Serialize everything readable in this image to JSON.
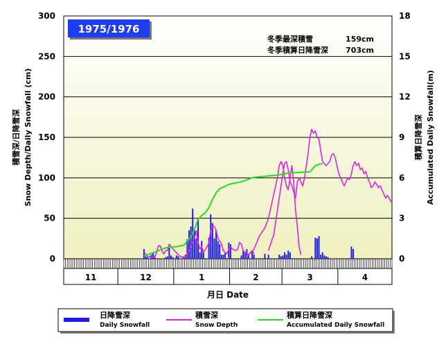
{
  "chart_data": {
    "type": "bar+line",
    "title": "1975/1976",
    "summary": [
      {
        "label": "冬季最深積雪",
        "value": "159cm"
      },
      {
        "label": "冬季積算日降雪深",
        "value": "703cm"
      }
    ],
    "ylabel_left": [
      "積雪深/日降雪深",
      "Snow Depth/Daily Snowfall (cm)"
    ],
    "ylabel_right": [
      "積算日降雪深",
      "Accumulated Daily Snowfall(m)"
    ],
    "xlabel": "月日 Date",
    "ylim_left": [
      0,
      300
    ],
    "ylim_right": [
      0,
      18
    ],
    "left_ticks": [
      0,
      50,
      100,
      150,
      200,
      250,
      300
    ],
    "right_ticks": [
      0,
      3,
      6,
      9,
      12,
      15,
      18
    ],
    "months": [
      "11",
      "12",
      "1",
      "2",
      "3",
      "4"
    ],
    "start_date": "11/1",
    "num_days": 182,
    "grid": true,
    "series": [
      {
        "name": "日降雪深",
        "name_en": "Daily Snowfall",
        "kind": "bar",
        "axis": "left",
        "color": "#1c1cf0",
        "values": [
          [
            44,
            12
          ],
          [
            45,
            3
          ],
          [
            46,
            2
          ],
          [
            48,
            5
          ],
          [
            49,
            7
          ],
          [
            50,
            4
          ],
          [
            56,
            2
          ],
          [
            57,
            3
          ],
          [
            58,
            15
          ],
          [
            59,
            4
          ],
          [
            60,
            2
          ],
          [
            62,
            4
          ],
          [
            63,
            3
          ],
          [
            66,
            3
          ],
          [
            67,
            5
          ],
          [
            68,
            24
          ],
          [
            69,
            35
          ],
          [
            70,
            40
          ],
          [
            71,
            62
          ],
          [
            72,
            35
          ],
          [
            73,
            25
          ],
          [
            74,
            50
          ],
          [
            75,
            8
          ],
          [
            76,
            22
          ],
          [
            77,
            8
          ],
          [
            80,
            26
          ],
          [
            81,
            55
          ],
          [
            82,
            44
          ],
          [
            83,
            25
          ],
          [
            84,
            35
          ],
          [
            85,
            22
          ],
          [
            86,
            18
          ],
          [
            87,
            5
          ],
          [
            88,
            5
          ],
          [
            89,
            7
          ],
          [
            91,
            20
          ],
          [
            92,
            18
          ],
          [
            98,
            4
          ],
          [
            99,
            10
          ],
          [
            100,
            8
          ],
          [
            101,
            12
          ],
          [
            102,
            6
          ],
          [
            104,
            10
          ],
          [
            105,
            5
          ],
          [
            111,
            6
          ],
          [
            113,
            5
          ],
          [
            119,
            5
          ],
          [
            120,
            3
          ],
          [
            121,
            4
          ],
          [
            122,
            8
          ],
          [
            123,
            5
          ],
          [
            124,
            10
          ],
          [
            125,
            8
          ],
          [
            137,
            3
          ],
          [
            139,
            26
          ],
          [
            140,
            25
          ],
          [
            141,
            28
          ],
          [
            142,
            5
          ],
          [
            143,
            8
          ],
          [
            144,
            4
          ],
          [
            145,
            3
          ],
          [
            146,
            2
          ],
          [
            159,
            15
          ],
          [
            160,
            12
          ]
        ]
      },
      {
        "name": "積雪深",
        "name_en": "Snow Depth",
        "kind": "line",
        "axis": "left",
        "color": "#e020e0",
        "segments": [
          [
            [
              44,
              8
            ],
            [
              46,
              3
            ],
            [
              48,
              2
            ],
            [
              50,
              2
            ],
            [
              51,
              8
            ],
            [
              52,
              16
            ],
            [
              53,
              16
            ],
            [
              54,
              10
            ],
            [
              55,
              6
            ],
            [
              56,
              10
            ],
            [
              57,
              10
            ],
            [
              58,
              18
            ],
            [
              59,
              15
            ],
            [
              61,
              10
            ],
            [
              63,
              5
            ],
            [
              64,
              3
            ],
            [
              65,
              2
            ],
            [
              67,
              2
            ],
            [
              69,
              10
            ],
            [
              70,
              15
            ],
            [
              72,
              25
            ],
            [
              73,
              35
            ],
            [
              74,
              20
            ],
            [
              75,
              12
            ],
            [
              76,
              15
            ],
            [
              77,
              8
            ],
            [
              79,
              15
            ],
            [
              80,
              20
            ],
            [
              81,
              35
            ],
            [
              82,
              40
            ],
            [
              83,
              40
            ],
            [
              84,
              35
            ],
            [
              85,
              25
            ],
            [
              86,
              22
            ],
            [
              87,
              18
            ],
            [
              88,
              10
            ],
            [
              89,
              8
            ],
            [
              90,
              6
            ],
            [
              91,
              12
            ],
            [
              92,
              15
            ],
            [
              93,
              12
            ],
            [
              95,
              10
            ],
            [
              96,
              12
            ],
            [
              97,
              20
            ],
            [
              98,
              18
            ],
            [
              99,
              10
            ],
            [
              100,
              8
            ],
            [
              101,
              3
            ],
            [
              102,
              4
            ],
            [
              103,
              8
            ],
            [
              104,
              10
            ],
            [
              105,
              6
            ]
          ],
          [
            [
              102,
              5
            ],
            [
              105,
              12
            ],
            [
              108,
              28
            ],
            [
              111,
              38
            ],
            [
              113,
              50
            ],
            [
              114,
              60
            ],
            [
              116,
              80
            ],
            [
              118,
              100
            ],
            [
              119,
              115
            ],
            [
              120,
              120
            ],
            [
              121,
              115
            ],
            [
              122,
              100
            ],
            [
              123,
              90
            ],
            [
              124,
              85
            ],
            [
              125,
              100
            ],
            [
              126,
              115
            ],
            [
              127,
              95
            ],
            [
              128,
              60
            ],
            [
              129,
              40
            ],
            [
              130,
              15
            ],
            [
              131,
              5
            ]
          ],
          [
            [
              113,
              10
            ],
            [
              116,
              30
            ],
            [
              118,
              60
            ],
            [
              120,
              90
            ],
            [
              121,
              105
            ],
            [
              122,
              118
            ],
            [
              123,
              120
            ],
            [
              124,
              110
            ],
            [
              125,
              95
            ],
            [
              126,
              90
            ],
            [
              128,
              75
            ],
            [
              129,
              95
            ],
            [
              130,
              100
            ],
            [
              131,
              95
            ],
            [
              132,
              90
            ],
            [
              133,
              100
            ],
            [
              134,
              115
            ],
            [
              135,
              130
            ],
            [
              136,
              150
            ],
            [
              137,
              160
            ],
            [
              138,
              155
            ],
            [
              139,
              158
            ],
            [
              140,
              150
            ],
            [
              141,
              148
            ],
            [
              143,
              120
            ],
            [
              145,
              115
            ],
            [
              147,
              120
            ],
            [
              148,
              128
            ],
            [
              149,
              130
            ],
            [
              150,
              125
            ],
            [
              151,
              115
            ],
            [
              152,
              105
            ],
            [
              153,
              100
            ],
            [
              154,
              95
            ],
            [
              155,
              90
            ],
            [
              156,
              95
            ],
            [
              157,
              100
            ],
            [
              158,
              98
            ],
            [
              159,
              105
            ],
            [
              160,
              115
            ],
            [
              161,
              120
            ],
            [
              162,
              115
            ],
            [
              163,
              118
            ],
            [
              164,
              110
            ],
            [
              165,
              112
            ],
            [
              166,
              105
            ],
            [
              167,
              108
            ],
            [
              168,
              100
            ],
            [
              169,
              95
            ],
            [
              170,
              88
            ],
            [
              171,
              90
            ],
            [
              172,
              95
            ],
            [
              173,
              92
            ],
            [
              174,
              88
            ],
            [
              175,
              90
            ],
            [
              176,
              85
            ],
            [
              177,
              80
            ],
            [
              178,
              75
            ],
            [
              179,
              78
            ],
            [
              180,
              75
            ],
            [
              181,
              70
            ]
          ]
        ]
      },
      {
        "name": "積算日降雪深",
        "name_en": "Accumulated Daily Snowfall",
        "kind": "line",
        "axis": "right",
        "color": "#22dd22",
        "points": [
          [
            44,
            0.2
          ],
          [
            50,
            0.5
          ],
          [
            56,
            0.8
          ],
          [
            62,
            0.9
          ],
          [
            66,
            1.0
          ],
          [
            70,
            1.6
          ],
          [
            72,
            2.2
          ],
          [
            74,
            2.9
          ],
          [
            76,
            3.2
          ],
          [
            78,
            3.4
          ],
          [
            80,
            3.8
          ],
          [
            82,
            4.4
          ],
          [
            84,
            4.9
          ],
          [
            86,
            5.2
          ],
          [
            88,
            5.3
          ],
          [
            90,
            5.45
          ],
          [
            92,
            5.55
          ],
          [
            94,
            5.6
          ],
          [
            96,
            5.65
          ],
          [
            98,
            5.7
          ],
          [
            100,
            5.8
          ],
          [
            102,
            5.9
          ],
          [
            104,
            6.0
          ],
          [
            106,
            6.05
          ],
          [
            110,
            6.1
          ],
          [
            114,
            6.15
          ],
          [
            118,
            6.2
          ],
          [
            122,
            6.3
          ],
          [
            125,
            6.4
          ],
          [
            130,
            6.4
          ],
          [
            136,
            6.45
          ],
          [
            139,
            6.9
          ],
          [
            141,
            7.0
          ],
          [
            143,
            7.05
          ]
        ]
      }
    ]
  }
}
